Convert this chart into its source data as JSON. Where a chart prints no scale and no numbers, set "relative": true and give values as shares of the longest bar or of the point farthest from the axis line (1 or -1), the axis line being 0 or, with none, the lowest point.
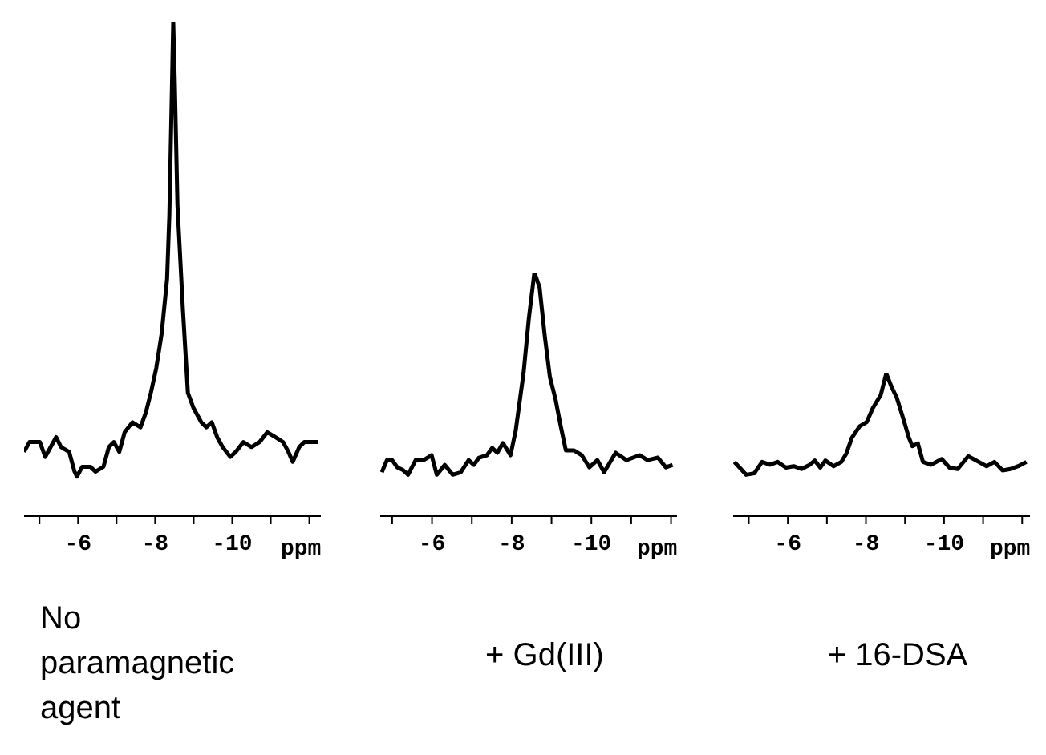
{
  "chart_data": [
    {
      "type": "line",
      "title": "No paramagnetic agent",
      "xlabel": "ppm",
      "relative": true,
      "color": "#000000",
      "xlim": [
        -4.6,
        -12.3
      ],
      "xticks": [
        {
          "value": -5,
          "label": null
        },
        -6,
        {
          "value": -7,
          "label": null
        },
        -8,
        {
          "value": -9,
          "label": null
        },
        -10,
        {
          "value": -11,
          "label": null
        },
        {
          "value": -12,
          "label": null
        }
      ],
      "marker": "none",
      "line_style": "solid",
      "x": [
        -4.6,
        -4.74,
        -4.88,
        -5.01,
        -5.15,
        -5.29,
        -5.43,
        -5.56,
        -5.77,
        -5.91,
        -5.97,
        -6.11,
        -6.32,
        -6.45,
        -6.66,
        -6.8,
        -6.93,
        -7.07,
        -7.21,
        -7.41,
        -7.62,
        -7.76,
        -7.89,
        -8.03,
        -8.17,
        -8.31,
        -8.37,
        -8.44,
        -8.47,
        -8.51,
        -8.58,
        -8.72,
        -8.85,
        -8.99,
        -9.2,
        -9.33,
        -9.47,
        -9.61,
        -9.75,
        -9.95,
        -10.09,
        -10.29,
        -10.5,
        -10.71,
        -10.91,
        -11.12,
        -11.32,
        -11.46,
        -11.57,
        -11.74,
        -11.87,
        -12.01,
        -12.22
      ],
      "values": [
        0.13,
        0.15,
        0.15,
        0.15,
        0.12,
        0.14,
        0.16,
        0.14,
        0.13,
        0.09,
        0.08,
        0.1,
        0.1,
        0.09,
        0.1,
        0.14,
        0.15,
        0.13,
        0.17,
        0.19,
        0.18,
        0.21,
        0.25,
        0.3,
        0.37,
        0.48,
        0.61,
        0.88,
        1,
        0.88,
        0.63,
        0.42,
        0.25,
        0.22,
        0.19,
        0.18,
        0.19,
        0.16,
        0.14,
        0.12,
        0.13,
        0.15,
        0.14,
        0.15,
        0.17,
        0.16,
        0.15,
        0.13,
        0.11,
        0.14,
        0.15,
        0.15,
        0.15
      ]
    },
    {
      "type": "line",
      "title": "+ Gd(III)",
      "xlabel": "ppm",
      "relative": true,
      "color": "#000000",
      "xlim": [
        -4.7,
        -12.15
      ],
      "xticks": [
        {
          "value": -5,
          "label": null
        },
        -6,
        {
          "value": -7,
          "label": null
        },
        -8,
        {
          "value": -9,
          "label": null
        },
        -10,
        {
          "value": -11,
          "label": null
        },
        {
          "value": -12,
          "label": null
        }
      ],
      "marker": "none",
      "line_style": "solid",
      "x": [
        -4.74,
        -4.87,
        -5.0,
        -5.13,
        -5.26,
        -5.4,
        -5.59,
        -5.79,
        -5.99,
        -6.12,
        -6.32,
        -6.52,
        -6.72,
        -6.92,
        -7.05,
        -7.18,
        -7.38,
        -7.51,
        -7.64,
        -7.78,
        -7.97,
        -8.1,
        -8.3,
        -8.43,
        -8.57,
        -8.7,
        -8.83,
        -8.96,
        -9.1,
        -9.23,
        -9.36,
        -9.56,
        -9.76,
        -9.95,
        -10.15,
        -10.32,
        -10.61,
        -10.88,
        -11.21,
        -11.41,
        -11.67,
        -11.87,
        -12.04
      ],
      "values": [
        0.18,
        0.23,
        0.23,
        0.2,
        0.19,
        0.17,
        0.23,
        0.23,
        0.25,
        0.17,
        0.21,
        0.17,
        0.18,
        0.23,
        0.21,
        0.24,
        0.25,
        0.28,
        0.26,
        0.3,
        0.25,
        0.35,
        0.59,
        0.81,
        1,
        0.94,
        0.74,
        0.57,
        0.48,
        0.37,
        0.27,
        0.27,
        0.25,
        0.2,
        0.23,
        0.18,
        0.26,
        0.23,
        0.25,
        0.23,
        0.24,
        0.2,
        0.21
      ]
    },
    {
      "type": "line",
      "title": "+ 16-DSA",
      "xlabel": "ppm",
      "relative": true,
      "color": "#000000",
      "xlim": [
        -4.6,
        -12.2
      ],
      "xticks": [
        {
          "value": -5,
          "label": null
        },
        -6,
        {
          "value": -7,
          "label": null
        },
        -8,
        {
          "value": -9,
          "label": null
        },
        -10,
        {
          "value": -11,
          "label": null
        },
        {
          "value": -12,
          "label": null
        }
      ],
      "marker": "none",
      "line_style": "solid",
      "x": [
        -4.63,
        -4.8,
        -4.93,
        -5.14,
        -5.34,
        -5.54,
        -5.74,
        -5.95,
        -6.15,
        -6.35,
        -6.56,
        -6.69,
        -6.83,
        -6.96,
        -7.17,
        -7.37,
        -7.5,
        -7.64,
        -7.84,
        -8.02,
        -8.18,
        -8.38,
        -8.52,
        -8.65,
        -8.79,
        -8.96,
        -9.1,
        -9.19,
        -9.33,
        -9.46,
        -9.67,
        -9.94,
        -10.14,
        -10.35,
        -10.62,
        -10.89,
        -11.09,
        -11.29,
        -11.5,
        -11.7,
        -11.9,
        -12.11
      ],
      "values": [
        0.38,
        0.33,
        0.29,
        0.3,
        0.38,
        0.36,
        0.38,
        0.34,
        0.35,
        0.33,
        0.36,
        0.39,
        0.34,
        0.39,
        0.35,
        0.38,
        0.44,
        0.55,
        0.63,
        0.66,
        0.76,
        0.85,
        1,
        0.91,
        0.83,
        0.68,
        0.55,
        0.49,
        0.51,
        0.38,
        0.36,
        0.4,
        0.34,
        0.33,
        0.42,
        0.38,
        0.35,
        0.38,
        0.32,
        0.33,
        0.35,
        0.38
      ]
    }
  ]
}
